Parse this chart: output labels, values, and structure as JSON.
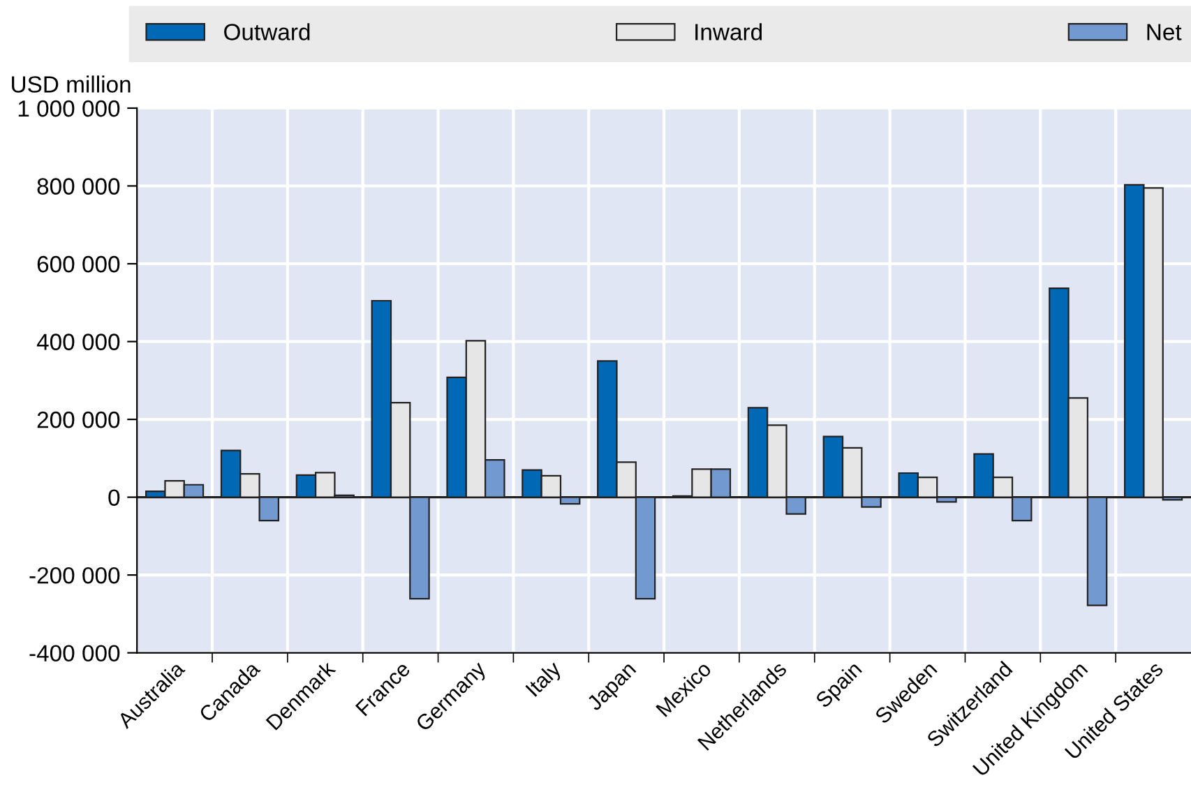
{
  "chart_data": {
    "type": "bar",
    "ylabel": "USD million",
    "categories": [
      "Australia",
      "Canada",
      "Denmark",
      "France",
      "Germany",
      "Italy",
      "Japan",
      "Mexico",
      "Netherlands",
      "Spain",
      "Sweden",
      "Switzerland",
      "United Kingdom",
      "United States"
    ],
    "series": [
      {
        "name": "Outward",
        "color": "#0068b5",
        "values": [
          15000,
          120000,
          57000,
          505000,
          308000,
          70000,
          350000,
          3000,
          230000,
          156000,
          62000,
          111000,
          537000,
          803000
        ]
      },
      {
        "name": "Inward",
        "color": "#e6e6e6",
        "values": [
          42000,
          60000,
          63000,
          243000,
          402000,
          55000,
          90000,
          72000,
          185000,
          127000,
          51000,
          51000,
          255000,
          795000
        ]
      },
      {
        "name": "Net",
        "color": "#7399d1",
        "values": [
          32000,
          -60000,
          5000,
          -261000,
          96000,
          -17000,
          -261000,
          72000,
          -43000,
          -25000,
          -12000,
          -60000,
          -278000,
          -7000
        ]
      }
    ],
    "ylim": [
      -400000,
      1000000
    ],
    "yticks": [
      {
        "value": -400000,
        "label": "-400 000"
      },
      {
        "value": -200000,
        "label": "-200 000"
      },
      0,
      {
        "value": 200000,
        "label": "200 000"
      },
      {
        "value": 400000,
        "label": "400 000"
      },
      {
        "value": 600000,
        "label": "600 000"
      },
      {
        "value": 800000,
        "label": "800 000"
      },
      {
        "value": 1000000,
        "label": "1 000 000"
      }
    ],
    "grid": true,
    "legend": "top"
  }
}
